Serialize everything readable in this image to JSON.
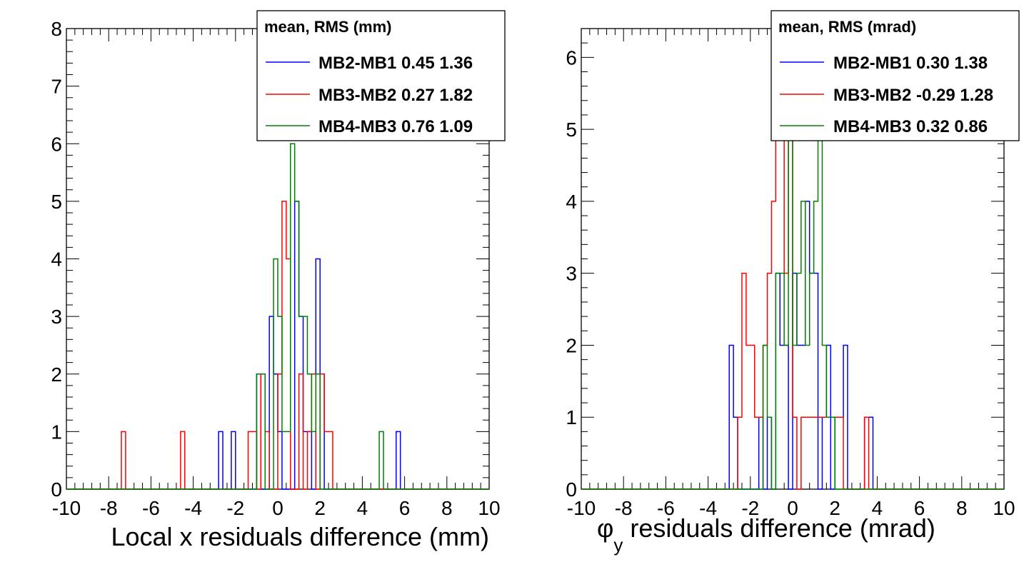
{
  "chart_data": [
    {
      "type": "histogram",
      "xlabel": "Local x residuals difference (mm)",
      "ylabel": "",
      "xlim": [
        -10,
        10
      ],
      "ylim": [
        0,
        8
      ],
      "xticks": [
        "-10",
        "-8",
        "-6",
        "-4",
        "-2",
        "0",
        "2",
        "4",
        "6",
        "8",
        "10"
      ],
      "yticks": [
        "0",
        "1",
        "2",
        "3",
        "4",
        "5",
        "6",
        "7",
        "8"
      ],
      "bin_width": 0.2,
      "grid": false,
      "legend_position": "top-right",
      "legend_header": "mean, RMS (mm)",
      "series": [
        {
          "name": "MB2-MB1 0.45 1.36",
          "color": "#0000ff",
          "bins": [
            [
              -2.8,
              1
            ],
            [
              -2.2,
              1
            ],
            [
              -1.0,
              2
            ],
            [
              -0.4,
              3
            ],
            [
              -0.2,
              2
            ],
            [
              0.0,
              1
            ],
            [
              0.8,
              5
            ],
            [
              1.0,
              3
            ],
            [
              1.2,
              1
            ],
            [
              1.4,
              1
            ],
            [
              1.8,
              4
            ],
            [
              2.0,
              2
            ],
            [
              5.6,
              1
            ]
          ]
        },
        {
          "name": "MB3-MB2 0.27 1.82",
          "color": "#ff0000",
          "bins": [
            [
              -7.4,
              1
            ],
            [
              -4.6,
              1
            ],
            [
              -1.4,
              1
            ],
            [
              -1.2,
              1
            ],
            [
              -0.8,
              2
            ],
            [
              -0.6,
              1
            ],
            [
              0.0,
              2
            ],
            [
              0.2,
              5
            ],
            [
              0.4,
              4
            ],
            [
              1.0,
              2
            ],
            [
              1.4,
              1
            ],
            [
              1.6,
              2
            ],
            [
              2.0,
              2
            ],
            [
              2.2,
              1
            ],
            [
              2.4,
              1
            ]
          ]
        },
        {
          "name": "MB4-MB3 0.76 1.09",
          "color": "#008000",
          "bins": [
            [
              -1.0,
              2
            ],
            [
              -0.8,
              2
            ],
            [
              -0.2,
              4
            ],
            [
              0.0,
              3
            ],
            [
              0.2,
              1
            ],
            [
              0.4,
              1
            ],
            [
              0.6,
              6
            ],
            [
              0.8,
              5
            ],
            [
              1.0,
              3
            ],
            [
              1.2,
              3
            ],
            [
              1.4,
              2
            ],
            [
              1.6,
              1
            ],
            [
              1.8,
              2
            ],
            [
              4.8,
              1
            ]
          ]
        }
      ]
    },
    {
      "type": "histogram",
      "xlabel_symbol": "φ",
      "xlabel_sub": "y",
      "xlabel": " residuals difference (mrad)",
      "ylabel": "",
      "xlim": [
        -10,
        10
      ],
      "ylim": [
        0,
        6.4
      ],
      "xticks": [
        "-10",
        "-8",
        "-6",
        "-4",
        "-2",
        "0",
        "2",
        "4",
        "6",
        "8",
        "10"
      ],
      "yticks": [
        "0",
        "1",
        "2",
        "3",
        "4",
        "5",
        "6"
      ],
      "bin_width": 0.2,
      "grid": false,
      "legend_position": "top-right",
      "legend_header": "mean, RMS (mrad)",
      "series": [
        {
          "name": "MB2-MB1 0.30 1.38",
          "color": "#0000ff",
          "bins": [
            [
              -3.0,
              2
            ],
            [
              -2.8,
              1
            ],
            [
              -1.6,
              1
            ],
            [
              -1.2,
              1
            ],
            [
              -0.8,
              3
            ],
            [
              -0.6,
              2
            ],
            [
              -0.4,
              2
            ],
            [
              0.0,
              3
            ],
            [
              0.2,
              2
            ],
            [
              0.4,
              2
            ],
            [
              0.6,
              4
            ],
            [
              0.8,
              3
            ],
            [
              1.0,
              3
            ],
            [
              1.4,
              1
            ],
            [
              1.6,
              2
            ],
            [
              2.0,
              1
            ],
            [
              2.2,
              1
            ],
            [
              2.4,
              2
            ],
            [
              3.4,
              1
            ],
            [
              3.6,
              1
            ]
          ]
        },
        {
          "name": "MB3-MB2 -0.29 1.28",
          "color": "#ff0000",
          "bins": [
            [
              -2.6,
              1
            ],
            [
              -2.4,
              3
            ],
            [
              -2.2,
              2
            ],
            [
              -2.0,
              2
            ],
            [
              -1.8,
              1
            ],
            [
              -1.6,
              1
            ],
            [
              -1.4,
              2
            ],
            [
              -1.2,
              3
            ],
            [
              -1.0,
              4
            ],
            [
              -0.8,
              5
            ],
            [
              -0.6,
              5
            ],
            [
              -0.4,
              3
            ],
            [
              -0.2,
              5
            ],
            [
              0.0,
              1
            ],
            [
              0.4,
              1
            ],
            [
              0.6,
              1
            ],
            [
              0.8,
              1
            ],
            [
              1.0,
              1
            ],
            [
              1.2,
              1
            ],
            [
              1.4,
              1
            ],
            [
              1.6,
              1
            ],
            [
              1.8,
              1
            ],
            [
              2.0,
              1
            ],
            [
              2.2,
              1
            ],
            [
              3.4,
              1
            ]
          ]
        },
        {
          "name": "MB4-MB3 0.32 0.86",
          "color": "#008000",
          "bins": [
            [
              -1.4,
              2
            ],
            [
              -1.2,
              1
            ],
            [
              -0.8,
              3
            ],
            [
              -0.6,
              3
            ],
            [
              -0.4,
              2
            ],
            [
              -0.2,
              5
            ],
            [
              0.0,
              2
            ],
            [
              0.2,
              3
            ],
            [
              0.4,
              4
            ],
            [
              0.6,
              2
            ],
            [
              0.8,
              3
            ],
            [
              1.0,
              4
            ],
            [
              1.2,
              5
            ],
            [
              1.4,
              2
            ],
            [
              1.6,
              1
            ],
            [
              1.8,
              1
            ]
          ]
        }
      ]
    }
  ]
}
